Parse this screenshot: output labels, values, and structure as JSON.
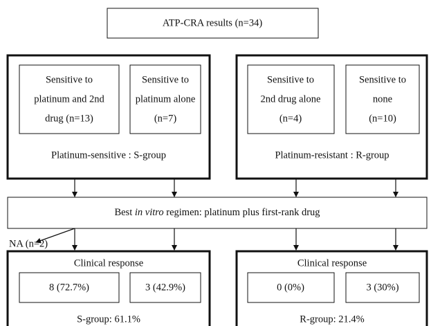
{
  "header": {
    "title": "ATP-CRA results (n=34)"
  },
  "groups": [
    {
      "label": "Platinum-sensitive : S-group",
      "boxes": [
        {
          "lines": [
            "Sensitive to",
            "platinum and 2nd",
            "drug (n=13)"
          ]
        },
        {
          "lines": [
            "Sensitive to",
            "platinum alone",
            "(n=7)"
          ]
        }
      ]
    },
    {
      "label": "Platinum-resistant : R-group",
      "boxes": [
        {
          "lines": [
            "Sensitive to",
            "2nd drug alone",
            "(n=4)"
          ]
        },
        {
          "lines": [
            "Sensitive to",
            "none",
            "(n=10)"
          ]
        }
      ]
    }
  ],
  "regimen": {
    "before": "Best ",
    "italic": "in vitro",
    "after": " regimen: platinum plus first-rank drug"
  },
  "na_note": "NA (n=2)",
  "responses": [
    {
      "title": "Clinical response",
      "boxes": [
        "8 (72.7%)",
        "3 (42.9%)"
      ],
      "summary": "S-group: 61.1%"
    },
    {
      "title": "Clinical response",
      "boxes": [
        "0 (0%)",
        "3 (30%)"
      ],
      "summary": "R-group: 21.4%"
    }
  ]
}
